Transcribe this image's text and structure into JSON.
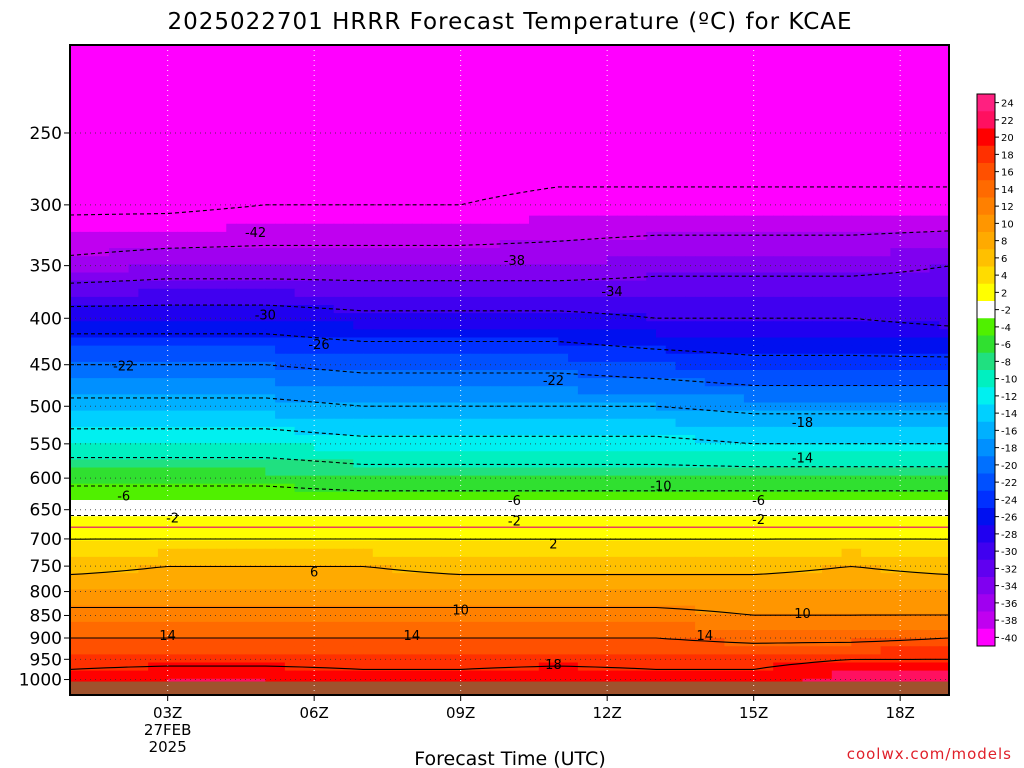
{
  "chart_data": {
    "type": "heatmap",
    "title": "2025022701 HRRR Forecast Temperature (ºC) for KCAE",
    "xlabel": "Forecast Time (UTC)",
    "ylabel": "",
    "x_ticks": [
      "03Z",
      "06Z",
      "09Z",
      "12Z",
      "15Z",
      "18Z"
    ],
    "x_tick_hours": [
      3,
      6,
      9,
      12,
      15,
      18
    ],
    "x_date_line1": "27FEB",
    "x_date_line2": "2025",
    "xlim_hours": [
      1,
      19
    ],
    "y_ticks": [
      250,
      300,
      350,
      400,
      450,
      500,
      550,
      600,
      650,
      700,
      750,
      800,
      850,
      900,
      950,
      1000
    ],
    "ylim_hpa": [
      200,
      1040
    ],
    "y_scale": "log-pressure, inverted",
    "grid": true,
    "surface_pressure_hpa": 1000,
    "colorbar": {
      "levels": [
        24,
        22,
        20,
        18,
        16,
        14,
        12,
        10,
        8,
        6,
        4,
        2,
        -2,
        -4,
        -6,
        -8,
        -10,
        -12,
        -14,
        -16,
        -18,
        -20,
        -22,
        -24,
        -26,
        -28,
        -30,
        -32,
        -34,
        -36,
        -38,
        -40
      ],
      "colors": [
        "#ff2080",
        "#ff1060",
        "#ff0000",
        "#ff3000",
        "#ff5000",
        "#ff6a00",
        "#ff8000",
        "#ff9600",
        "#ffaa00",
        "#ffc000",
        "#ffdc00",
        "#ffff00",
        "#ffffff",
        "#50f000",
        "#30e030",
        "#20e080",
        "#00f0c0",
        "#00f0f0",
        "#00d0ff",
        "#00b0ff",
        "#0090ff",
        "#0070ff",
        "#0050ff",
        "#0030ff",
        "#0010f0",
        "#2000f0",
        "#4000f0",
        "#6000f0",
        "#8000f0",
        "#a000f0",
        "#c000f0",
        "#ff00ff"
      ]
    },
    "hours": [
      1,
      3,
      5,
      7,
      9,
      11,
      13,
      15,
      17,
      19
    ],
    "profiles": [
      {
        "p": 1000,
        "t": [
          19,
          20,
          20,
          19,
          19,
          20,
          19,
          19,
          21,
          22
        ]
      },
      {
        "p": 950,
        "t": [
          17,
          17,
          17,
          17,
          17,
          17,
          17,
          17,
          18,
          18
        ]
      },
      {
        "p": 900,
        "t": [
          14,
          14,
          14,
          14,
          14,
          14,
          14,
          13,
          13,
          14
        ]
      },
      {
        "p": 850,
        "t": [
          11,
          11,
          11,
          11,
          11,
          11,
          11,
          10,
          10,
          10
        ]
      },
      {
        "p": 800,
        "t": [
          8,
          8,
          8,
          8,
          8,
          8,
          8,
          8,
          8,
          8
        ]
      },
      {
        "p": 750,
        "t": [
          5,
          6,
          6,
          6,
          5,
          5,
          5,
          5,
          6,
          5
        ]
      },
      {
        "p": 700,
        "t": [
          2,
          2,
          2,
          2,
          2,
          2,
          2,
          2,
          2,
          2
        ]
      },
      {
        "p": 650,
        "t": [
          -3,
          -3,
          -3,
          -3,
          -3,
          -3,
          -3,
          -3,
          -3,
          -3
        ]
      },
      {
        "p": 600,
        "t": [
          -7,
          -7,
          -7,
          -8,
          -8,
          -8,
          -8,
          -8,
          -8,
          -8
        ]
      },
      {
        "p": 550,
        "t": [
          -12,
          -12,
          -12,
          -13,
          -13,
          -13,
          -13,
          -14,
          -14,
          -14
        ]
      },
      {
        "p": 500,
        "t": [
          -17,
          -17,
          -17,
          -18,
          -18,
          -18,
          -18,
          -19,
          -19,
          -19
        ]
      },
      {
        "p": 450,
        "t": [
          -22,
          -22,
          -22,
          -23,
          -23,
          -23,
          -24,
          -25,
          -25,
          -25
        ]
      },
      {
        "p": 400,
        "t": [
          -28,
          -28,
          -28,
          -29,
          -29,
          -29,
          -30,
          -30,
          -30,
          -31
        ]
      },
      {
        "p": 350,
        "t": [
          -37,
          -36,
          -36,
          -36,
          -36,
          -36,
          -35,
          -35,
          -35,
          -34
        ]
      },
      {
        "p": 300,
        "t": [
          -43,
          -43,
          -42,
          -42,
          -42,
          -41,
          -41,
          -41,
          -41,
          -41
        ]
      },
      {
        "p": 250,
        "t": [
          -46,
          -47,
          -47,
          -46,
          -45,
          -45,
          -45,
          -45,
          -45,
          -45
        ]
      },
      {
        "p": 200,
        "t": [
          -48,
          -48,
          -48,
          -47,
          -47,
          -47,
          -47,
          -47,
          -47,
          -47
        ]
      }
    ],
    "contour_levels": [
      -42,
      -38,
      -34,
      -30,
      -26,
      -22,
      -18,
      -14,
      -10,
      -6,
      -2,
      2,
      6,
      10,
      14,
      18
    ],
    "contour_labels": [
      {
        "value": "-42",
        "hour": 4.8,
        "p": 322
      },
      {
        "value": "-38",
        "hour": 10.1,
        "p": 346
      },
      {
        "value": "-34",
        "hour": 12.1,
        "p": 374
      },
      {
        "value": "-30",
        "hour": 5.0,
        "p": 397
      },
      {
        "value": "-26",
        "hour": 6.1,
        "p": 428
      },
      {
        "value": "-22",
        "hour": 2.1,
        "p": 452
      },
      {
        "value": "-22",
        "hour": 10.9,
        "p": 469
      },
      {
        "value": "-18",
        "hour": 16.0,
        "p": 522
      },
      {
        "value": "-14",
        "hour": 16.0,
        "p": 571
      },
      {
        "value": "-10",
        "hour": 13.1,
        "p": 613
      },
      {
        "value": "-6",
        "hour": 2.1,
        "p": 629
      },
      {
        "value": "-6",
        "hour": 10.1,
        "p": 636
      },
      {
        "value": "-6",
        "hour": 15.1,
        "p": 636
      },
      {
        "value": "-2",
        "hour": 3.1,
        "p": 665
      },
      {
        "value": "-2",
        "hour": 10.1,
        "p": 670
      },
      {
        "value": "-2",
        "hour": 15.1,
        "p": 667
      },
      {
        "value": "2",
        "hour": 10.9,
        "p": 710
      },
      {
        "value": "6",
        "hour": 6.0,
        "p": 762
      },
      {
        "value": "10",
        "hour": 9.0,
        "p": 839
      },
      {
        "value": "10",
        "hour": 16.0,
        "p": 847
      },
      {
        "value": "14",
        "hour": 3.0,
        "p": 896
      },
      {
        "value": "14",
        "hour": 8.0,
        "p": 896
      },
      {
        "value": "14",
        "hour": 14.0,
        "p": 896
      },
      {
        "value": "18",
        "hour": 10.9,
        "p": 964
      }
    ]
  },
  "credit": "coolwx.com/models"
}
